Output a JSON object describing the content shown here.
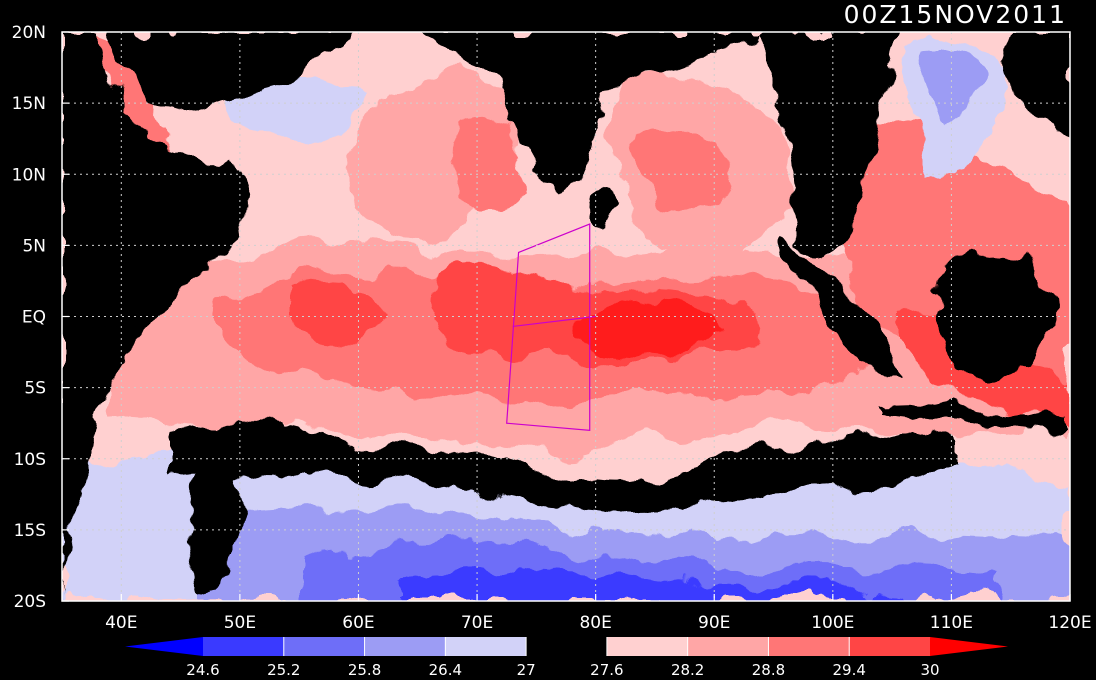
{
  "title": "00Z15NOV2011",
  "chart_data": {
    "type": "heatmap",
    "xlim": [
      35,
      120
    ],
    "ylim": [
      -20,
      20
    ],
    "x_ticks": [
      {
        "value": 40,
        "label": "40E"
      },
      {
        "value": 50,
        "label": "50E"
      },
      {
        "value": 60,
        "label": "60E"
      },
      {
        "value": 70,
        "label": "70E"
      },
      {
        "value": 80,
        "label": "80E"
      },
      {
        "value": 90,
        "label": "90E"
      },
      {
        "value": 100,
        "label": "100E"
      },
      {
        "value": 110,
        "label": "110E"
      },
      {
        "value": 120,
        "label": "120E"
      }
    ],
    "y_ticks": [
      {
        "value": 20,
        "label": "20N"
      },
      {
        "value": 15,
        "label": "15N"
      },
      {
        "value": 10,
        "label": "10N"
      },
      {
        "value": 5,
        "label": "5N"
      },
      {
        "value": 0,
        "label": "EQ"
      },
      {
        "value": -5,
        "label": "5S"
      },
      {
        "value": -10,
        "label": "10S"
      },
      {
        "value": -15,
        "label": "15S"
      },
      {
        "value": -20,
        "label": "20S"
      }
    ],
    "grid": true,
    "colorbar": {
      "levels": [
        "24.6",
        "25.2",
        "25.8",
        "26.4",
        "27",
        "27.6",
        "28.2",
        "28.8",
        "29.4",
        "30"
      ],
      "colors": [
        "#0000ff",
        "#3a3aff",
        "#6e6ef8",
        "#9c9cf4",
        "#d2d2f8",
        "#000000",
        "#ffd0d0",
        "#ffa6a6",
        "#ff7676",
        "#ff4545",
        "#ff0000"
      ],
      "placement": "bottom"
    },
    "outline_color": "#d000d0",
    "domain_polygon_color": "#cc00cc",
    "domain_polygon": [
      [
        73.5,
        4.5
      ],
      [
        79.5,
        6.5
      ],
      [
        79.5,
        -8
      ],
      [
        72.5,
        -7.5
      ]
    ],
    "domain_divider": [
      [
        73,
        -0.7
      ],
      [
        80,
        0
      ]
    ],
    "approx_regions": [
      {
        "lon": 89,
        "lat": -1,
        "value": 30.2
      },
      {
        "lon": 78,
        "lat": -1,
        "value": 29.6
      },
      {
        "lon": 60,
        "lat": 1,
        "value": 29.0
      },
      {
        "lon": 72,
        "lat": 10,
        "value": 29.0
      },
      {
        "lon": 85,
        "lat": 12,
        "value": 29.0
      },
      {
        "lon": 113,
        "lat": -6,
        "value": 29.8
      },
      {
        "lon": 113,
        "lat": 12,
        "value": 28.6
      },
      {
        "lon": 95,
        "lat": -10,
        "value": 27.6
      },
      {
        "lon": 60,
        "lat": -10,
        "value": 27.4
      },
      {
        "lon": 75,
        "lat": -16,
        "value": 25.0
      },
      {
        "lon": 62,
        "lat": -18,
        "value": 25.4
      },
      {
        "lon": 57,
        "lat": 16,
        "value": 26.8
      },
      {
        "lon": 116,
        "lat": 16,
        "value": 26.0
      }
    ]
  }
}
